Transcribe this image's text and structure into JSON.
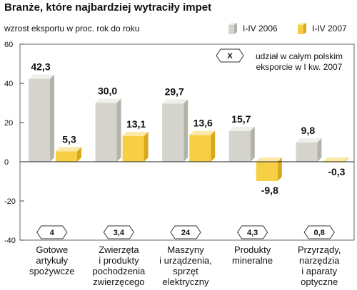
{
  "chart_data": {
    "type": "bar",
    "title": "Branże, które najbardziej wytraciły impet",
    "subtitle": "wzrost eksportu w proc. rok do roku",
    "categories": [
      "Gotowe artykuły spożywcze",
      "Zwierzęta i produkty pochodzenia zwierzęcego",
      "Maszyny i urządzenia, sprzęt elektryczny",
      "Produkty mineralne",
      "Przyrządy, narzędzia i aparaty optyczne"
    ],
    "category_lines": [
      [
        "Gotowe",
        "artykuły",
        "spożywcze"
      ],
      [
        "Zwierzęta",
        "i produkty",
        "pochodzenia",
        "zwierzęcego"
      ],
      [
        "Maszyny",
        "i urządzenia,",
        "sprzęt",
        "elektryczny"
      ],
      [
        "Produkty",
        "mineralne"
      ],
      [
        "Przyrządy,",
        "narzędzia",
        "i aparaty",
        "optyczne"
      ]
    ],
    "series": [
      {
        "name": "I-IV 2006",
        "values": [
          42.3,
          30.0,
          29.7,
          15.7,
          9.8
        ],
        "labels": [
          "42,3",
          "30,0",
          "29,7",
          "15,7",
          "9,8"
        ],
        "color": "#d4d4cc"
      },
      {
        "name": "I-IV 2007",
        "values": [
          5.3,
          13.1,
          13.6,
          -9.8,
          -0.3
        ],
        "labels": [
          "5,3",
          "13,1",
          "13,6",
          "-9,8",
          "-0,3"
        ],
        "color": "#f6cf45"
      }
    ],
    "share_values": [
      "4",
      "3,4",
      "24",
      "4,3",
      "0,8"
    ],
    "share_legend_symbol": "X",
    "share_legend_text": [
      "udział w całym polskim",
      "eksporcie w I kw. 2007"
    ],
    "yticks": [
      60,
      40,
      20,
      0,
      -20,
      -40
    ],
    "ytick_labels": [
      "60",
      "40",
      "20",
      "0",
      "-20",
      "-40"
    ],
    "ylim": [
      -40,
      60
    ],
    "grid": false,
    "legend_position": "top-right"
  }
}
